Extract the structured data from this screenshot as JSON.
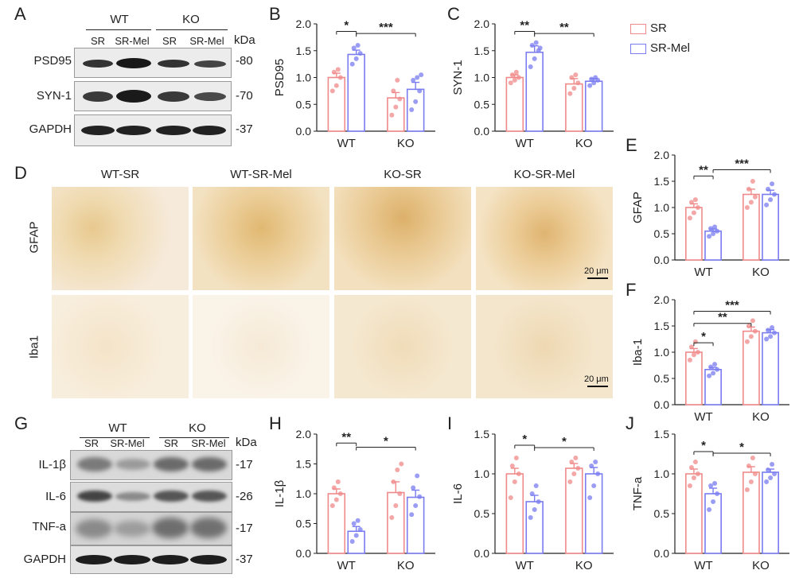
{
  "panels": {
    "A": "A",
    "B": "B",
    "C": "C",
    "D": "D",
    "E": "E",
    "F": "F",
    "G": "G",
    "H": "H",
    "I": "I",
    "J": "J"
  },
  "legend": {
    "sr": "SR",
    "srmel": "SR-Mel"
  },
  "colors": {
    "sr": "#f08a8a",
    "srmel": "#7a7cf0"
  },
  "blot_A": {
    "group_wt": "WT",
    "group_ko": "KO",
    "lanes": [
      "SR",
      "SR-Mel",
      "SR",
      "SR-Mel"
    ],
    "kda": "kDa",
    "rows": [
      {
        "label": "PSD95",
        "mw": "-80"
      },
      {
        "label": "SYN-1",
        "mw": "-70"
      },
      {
        "label": "GAPDH",
        "mw": "-37"
      }
    ]
  },
  "blot_G": {
    "group_wt": "WT",
    "group_ko": "KO",
    "lanes": [
      "SR",
      "SR-Mel",
      "SR",
      "SR-Mel"
    ],
    "kda": "kDa",
    "rows": [
      {
        "label": "IL-1β",
        "mw": "-17"
      },
      {
        "label": "IL-6",
        "mw": "-26"
      },
      {
        "label": "TNF-a",
        "mw": "-17"
      },
      {
        "label": "GAPDH",
        "mw": "-37"
      }
    ]
  },
  "ihc": {
    "columns": [
      "WT-SR",
      "WT-SR-Mel",
      "KO-SR",
      "KO-SR-Mel"
    ],
    "rows": [
      "GFAP",
      "Iba1"
    ],
    "scale": "20 μm"
  },
  "chart_data": [
    {
      "panel": "B",
      "type": "bar",
      "ylabel": "PSD95",
      "categories": [
        "WT",
        "KO"
      ],
      "ylim": [
        0,
        2.0
      ],
      "yticks": [
        "0.0",
        "0.5",
        "1.0",
        "1.5",
        "2.0"
      ],
      "series": [
        {
          "name": "SR",
          "values": [
            1.0,
            0.62
          ],
          "err": [
            0.08,
            0.1
          ],
          "points": [
            [
              0.75,
              0.85,
              1.0,
              1.1,
              1.15
            ],
            [
              0.3,
              0.45,
              0.6,
              0.75,
              0.95
            ]
          ]
        },
        {
          "name": "SR-Mel",
          "values": [
            1.43,
            0.78
          ],
          "err": [
            0.08,
            0.13
          ],
          "points": [
            [
              1.25,
              1.35,
              1.45,
              1.55,
              1.6
            ],
            [
              0.4,
              0.55,
              0.75,
              0.95,
              1.0,
              1.05
            ]
          ]
        }
      ],
      "sig": [
        {
          "from": 0,
          "to": 1,
          "label": "*",
          "y": 1.86
        },
        {
          "from": 1,
          "to": 3,
          "label": "***",
          "y": 1.82
        }
      ]
    },
    {
      "panel": "C",
      "type": "bar",
      "ylabel": "SYN-1",
      "categories": [
        "WT",
        "KO"
      ],
      "ylim": [
        0,
        2.0
      ],
      "yticks": [
        "0.0",
        "0.5",
        "1.0",
        "1.5",
        "2.0"
      ],
      "series": [
        {
          "name": "SR",
          "values": [
            1.0,
            0.88
          ],
          "err": [
            0.05,
            0.1
          ],
          "points": [
            [
              0.9,
              0.95,
              1.0,
              1.05,
              1.1
            ],
            [
              0.7,
              0.8,
              0.9,
              1.0,
              1.05
            ]
          ]
        },
        {
          "name": "SR-Mel",
          "values": [
            1.47,
            0.93
          ],
          "err": [
            0.12,
            0.05
          ],
          "points": [
            [
              1.2,
              1.35,
              1.5,
              1.6,
              1.65,
              1.55
            ],
            [
              0.85,
              0.9,
              0.95,
              0.97,
              1.0
            ]
          ]
        }
      ],
      "sig": [
        {
          "from": 0,
          "to": 1,
          "label": "**",
          "y": 1.86
        },
        {
          "from": 1,
          "to": 3,
          "label": "**",
          "y": 1.82
        }
      ]
    },
    {
      "panel": "E",
      "type": "bar",
      "ylabel": "GFAP",
      "categories": [
        "WT",
        "KO"
      ],
      "ylim": [
        0,
        2.0
      ],
      "yticks": [
        "0.0",
        "0.5",
        "1.0",
        "1.5",
        "2.0"
      ],
      "series": [
        {
          "name": "SR",
          "values": [
            1.0,
            1.25
          ],
          "err": [
            0.07,
            0.1
          ],
          "points": [
            [
              0.8,
              0.9,
              1.0,
              1.1,
              1.15
            ],
            [
              1.0,
              1.1,
              1.2,
              1.35,
              1.5
            ]
          ]
        },
        {
          "name": "SR-Mel",
          "values": [
            0.55,
            1.25
          ],
          "err": [
            0.04,
            0.08
          ],
          "points": [
            [
              0.45,
              0.5,
              0.55,
              0.6,
              0.63
            ],
            [
              1.05,
              1.15,
              1.25,
              1.35,
              1.45
            ]
          ]
        }
      ],
      "sig": [
        {
          "from": 0,
          "to": 1,
          "label": "**",
          "y": 1.6
        },
        {
          "from": 1,
          "to": 3,
          "label": "***",
          "y": 1.72
        }
      ]
    },
    {
      "panel": "F",
      "type": "bar",
      "ylabel": "Iba-1",
      "categories": [
        "WT",
        "KO"
      ],
      "ylim": [
        0,
        2.0
      ],
      "yticks": [
        "0.0",
        "0.5",
        "1.0",
        "1.5",
        "2.0"
      ],
      "series": [
        {
          "name": "SR",
          "values": [
            1.0,
            1.4
          ],
          "err": [
            0.07,
            0.08
          ],
          "points": [
            [
              0.85,
              0.95,
              1.0,
              1.1,
              1.2
            ],
            [
              1.2,
              1.3,
              1.4,
              1.5,
              1.6
            ]
          ]
        },
        {
          "name": "SR-Mel",
          "values": [
            0.67,
            1.37
          ],
          "err": [
            0.04,
            0.06
          ],
          "points": [
            [
              0.55,
              0.6,
              0.67,
              0.72,
              0.77
            ],
            [
              1.25,
              1.3,
              1.37,
              1.42,
              1.47
            ]
          ]
        }
      ],
      "sig": [
        {
          "from": 0,
          "to": 1,
          "label": "*",
          "y": 1.18
        },
        {
          "from": 0,
          "to": 2,
          "label": "**",
          "y": 1.55
        },
        {
          "from": 0,
          "to": 3,
          "label": "***",
          "y": 1.78
        }
      ]
    },
    {
      "panel": "H",
      "type": "bar",
      "ylabel": "IL-1β",
      "categories": [
        "WT",
        "KO"
      ],
      "ylim": [
        0,
        2.0
      ],
      "yticks": [
        "0.0",
        "0.5",
        "1.0",
        "1.5",
        "2.0"
      ],
      "series": [
        {
          "name": "SR",
          "values": [
            1.0,
            1.02
          ],
          "err": [
            0.08,
            0.18
          ],
          "points": [
            [
              0.8,
              0.9,
              1.0,
              1.1,
              1.2
            ],
            [
              0.6,
              0.8,
              1.0,
              1.2,
              1.4,
              1.5
            ]
          ]
        },
        {
          "name": "SR-Mel",
          "values": [
            0.37,
            0.94
          ],
          "err": [
            0.08,
            0.12
          ],
          "points": [
            [
              0.2,
              0.3,
              0.4,
              0.5,
              0.55
            ],
            [
              0.65,
              0.8,
              0.95,
              1.1,
              1.3
            ]
          ]
        }
      ],
      "sig": [
        {
          "from": 0,
          "to": 1,
          "label": "**",
          "y": 1.85
        },
        {
          "from": 1,
          "to": 3,
          "label": "*",
          "y": 1.78
        }
      ]
    },
    {
      "panel": "I",
      "type": "bar",
      "ylabel": "IL-6",
      "categories": [
        "WT",
        "KO"
      ],
      "ylim": [
        0,
        1.5
      ],
      "yticks": [
        "0.0",
        "0.5",
        "1.0",
        "1.5"
      ],
      "series": [
        {
          "name": "SR",
          "values": [
            1.0,
            1.07
          ],
          "err": [
            0.07,
            0.06
          ],
          "points": [
            [
              0.7,
              0.9,
              1.0,
              1.1,
              1.2
            ],
            [
              0.9,
              1.0,
              1.07,
              1.15,
              1.2
            ]
          ]
        },
        {
          "name": "SR-Mel",
          "values": [
            0.65,
            1.0
          ],
          "err": [
            0.08,
            0.08
          ],
          "points": [
            [
              0.45,
              0.55,
              0.65,
              0.75,
              0.85
            ],
            [
              0.7,
              0.85,
              1.0,
              1.1,
              1.15
            ]
          ]
        }
      ],
      "sig": [
        {
          "from": 0,
          "to": 1,
          "label": "*",
          "y": 1.36
        },
        {
          "from": 1,
          "to": 3,
          "label": "*",
          "y": 1.33
        }
      ]
    },
    {
      "panel": "J",
      "type": "bar",
      "ylabel": "TNF-a",
      "categories": [
        "WT",
        "KO"
      ],
      "ylim": [
        0,
        1.5
      ],
      "yticks": [
        "0.0",
        "0.5",
        "1.0",
        "1.5"
      ],
      "series": [
        {
          "name": "SR",
          "values": [
            1.0,
            1.02
          ],
          "err": [
            0.06,
            0.07
          ],
          "points": [
            [
              0.85,
              0.95,
              1.0,
              1.08,
              1.15
            ],
            [
              0.8,
              0.9,
              1.0,
              1.1,
              1.2
            ]
          ]
        },
        {
          "name": "SR-Mel",
          "values": [
            0.75,
            1.02
          ],
          "err": [
            0.07,
            0.04
          ],
          "points": [
            [
              0.55,
              0.65,
              0.75,
              0.85,
              0.88
            ],
            [
              0.9,
              0.95,
              1.0,
              1.05,
              1.12
            ]
          ]
        }
      ],
      "sig": [
        {
          "from": 0,
          "to": 1,
          "label": "*",
          "y": 1.28
        },
        {
          "from": 1,
          "to": 3,
          "label": "*",
          "y": 1.26
        }
      ]
    }
  ]
}
